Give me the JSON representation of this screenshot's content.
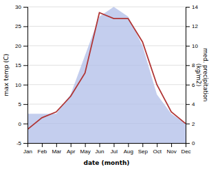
{
  "chart_data": {
    "type": "line",
    "categories": [
      "Jan",
      "Feb",
      "Mar",
      "Apr",
      "May",
      "Jun",
      "Jul",
      "Aug",
      "Sep",
      "Oct",
      "Nov",
      "Dec"
    ],
    "series": [
      {
        "type": "area",
        "axis": "y2",
        "color": "#b0bee8",
        "values": [
          3,
          3,
          3,
          5,
          9,
          13,
          14,
          13,
          10,
          5,
          3,
          2
        ]
      },
      {
        "type": "line",
        "color": "#b03535",
        "values": [
          -1.5,
          1.5,
          3,
          7,
          13,
          28.5,
          27,
          27,
          21,
          10,
          3,
          0
        ]
      }
    ],
    "xlabel": "date (month)",
    "ylabel": "max temp (C)",
    "y2label": "med. precipitation\n(kg/m2)",
    "ylim": [
      -5,
      30
    ],
    "yticks": [
      -5,
      0,
      5,
      10,
      15,
      20,
      25,
      30
    ],
    "y2lim": [
      0,
      14
    ],
    "y2ticks": [
      0,
      2,
      4,
      6,
      8,
      10,
      12,
      14
    ],
    "grid": true
  }
}
